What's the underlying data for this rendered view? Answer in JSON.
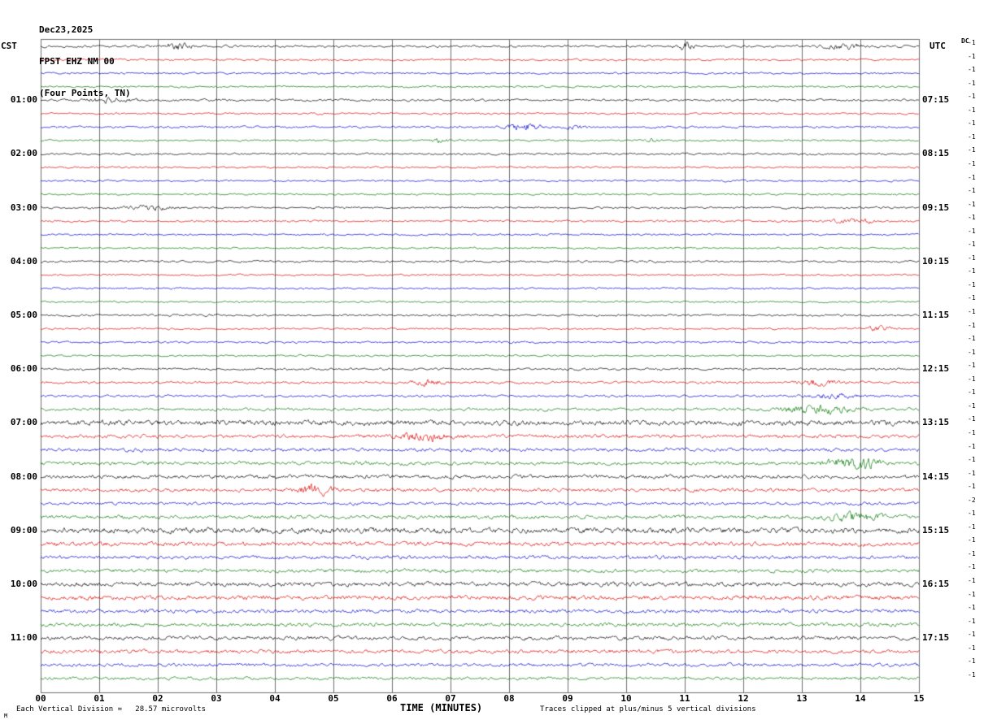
{
  "header": {
    "date": "Dec23,2025",
    "station": "FPST EHZ NM 00",
    "location": "(Four Points, TN)"
  },
  "axes": {
    "left_tz": "CST",
    "right_tz": "UTC",
    "dc_label": "DC"
  },
  "xaxis": {
    "title": "TIME (MINUTES)"
  },
  "footer": {
    "scale_note": "Each Vertical Division =   28.57 microvolts",
    "clip_note": "Traces clipped at plus/minus 5 vertical divisions",
    "corner_mark": "M"
  },
  "chart_data": {
    "type": "line",
    "title": "FPST EHZ NM 00 helicorder, Dec23,2025, Four Points, TN",
    "x_ticks": [
      "00",
      "01",
      "02",
      "03",
      "04",
      "05",
      "06",
      "07",
      "08",
      "09",
      "10",
      "11",
      "12",
      "13",
      "14",
      "15"
    ],
    "minutes_per_row": 15,
    "rows": 48,
    "trace_colors": [
      "#000000",
      "#dd0000",
      "#0000cc",
      "#007700"
    ],
    "grid_color": "#6e6e6e",
    "left_labels": [
      {
        "row": 4,
        "text": "01:00"
      },
      {
        "row": 8,
        "text": "02:00"
      },
      {
        "row": 12,
        "text": "03:00"
      },
      {
        "row": 16,
        "text": "04:00"
      },
      {
        "row": 20,
        "text": "05:00"
      },
      {
        "row": 24,
        "text": "06:00"
      },
      {
        "row": 28,
        "text": "07:00"
      },
      {
        "row": 32,
        "text": "08:00"
      },
      {
        "row": 36,
        "text": "09:00"
      },
      {
        "row": 40,
        "text": "10:00"
      },
      {
        "row": 44,
        "text": "11:00"
      }
    ],
    "right_labels": [
      {
        "row": 4,
        "text": "07:15"
      },
      {
        "row": 8,
        "text": "08:15"
      },
      {
        "row": 12,
        "text": "09:15"
      },
      {
        "row": 16,
        "text": "10:15"
      },
      {
        "row": 20,
        "text": "11:15"
      },
      {
        "row": 24,
        "text": "12:15"
      },
      {
        "row": 28,
        "text": "13:15"
      },
      {
        "row": 32,
        "text": "14:15"
      },
      {
        "row": 36,
        "text": "15:15"
      },
      {
        "row": 40,
        "text": "16:15"
      },
      {
        "row": 44,
        "text": "17:15"
      }
    ],
    "dc_values": [
      "-1",
      "-1",
      "-1",
      "-1",
      "-1",
      "-1",
      "-1",
      "-1",
      "-1",
      "-1",
      "-1",
      "-1",
      "-1",
      "-1",
      "-1",
      "-1",
      "-1",
      "-1",
      "-1",
      "-1",
      "-1",
      "-1",
      "-1",
      "-1",
      "-1",
      "-1",
      "-1",
      "-1",
      "-1",
      "-1",
      "-1",
      "-1",
      "-1",
      "-1",
      "-2",
      "-1",
      "-1",
      "-1",
      "-1",
      "-1",
      "-1",
      "-1",
      "-1",
      "-1",
      "-1",
      "-1",
      "-1",
      "-1"
    ],
    "amplitudes": [
      1.1,
      1.0,
      0.9,
      0.9,
      1.1,
      0.9,
      1.0,
      0.9,
      1.0,
      0.9,
      0.9,
      0.9,
      1.0,
      1.0,
      0.9,
      0.9,
      1.0,
      0.9,
      0.9,
      0.9,
      1.0,
      0.9,
      1.0,
      0.9,
      1.1,
      1.2,
      1.1,
      1.4,
      2.6,
      1.8,
      1.8,
      1.8,
      1.9,
      1.8,
      1.5,
      1.8,
      2.8,
      2.2,
      1.8,
      1.8,
      2.2,
      2.2,
      1.8,
      1.8,
      1.9,
      1.9,
      1.6,
      1.5
    ],
    "events": [
      {
        "row": 0,
        "m": 2.35,
        "a": 3.0,
        "w": 0.15
      },
      {
        "row": 0,
        "m": 11.0,
        "a": 3.0,
        "w": 0.12
      },
      {
        "row": 0,
        "m": 13.7,
        "a": 2.5,
        "w": 0.2
      },
      {
        "row": 4,
        "m": 1.2,
        "a": 2.0,
        "w": 0.3
      },
      {
        "row": 6,
        "m": 8.25,
        "a": 4.0,
        "w": 0.2
      },
      {
        "row": 6,
        "m": 9.1,
        "a": 1.5,
        "w": 0.15
      },
      {
        "row": 7,
        "m": 6.8,
        "a": 2.0,
        "w": 0.1
      },
      {
        "row": 7,
        "m": 10.4,
        "a": 2.0,
        "w": 0.1
      },
      {
        "row": 12,
        "m": 1.85,
        "a": 2.5,
        "w": 0.25
      },
      {
        "row": 13,
        "m": 13.9,
        "a": 2.0,
        "w": 0.3
      },
      {
        "row": 21,
        "m": 14.3,
        "a": 2.5,
        "w": 0.15
      },
      {
        "row": 25,
        "m": 6.6,
        "a": 2.0,
        "w": 0.2
      },
      {
        "row": 25,
        "m": 13.3,
        "a": 2.5,
        "w": 0.2
      },
      {
        "row": 26,
        "m": 13.5,
        "a": 2.0,
        "w": 0.3
      },
      {
        "row": 27,
        "m": 13.3,
        "a": 2.5,
        "w": 0.4
      },
      {
        "row": 29,
        "m": 6.6,
        "a": 2.0,
        "w": 0.3
      },
      {
        "row": 31,
        "m": 13.9,
        "a": 3.0,
        "w": 0.3
      },
      {
        "row": 33,
        "m": 4.7,
        "a": 2.5,
        "w": 0.2
      },
      {
        "row": 35,
        "m": 13.9,
        "a": 2.5,
        "w": 0.3
      }
    ]
  }
}
